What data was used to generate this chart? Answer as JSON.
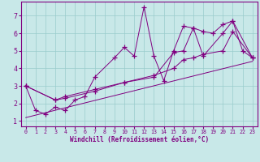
{
  "xlabel": "Windchill (Refroidissement éolien,°C)",
  "background_color": "#c8e8e8",
  "line_color": "#800080",
  "grid_color": "#99cccc",
  "xlim": [
    -0.5,
    23.5
  ],
  "ylim": [
    0.7,
    7.8
  ],
  "xticks": [
    0,
    1,
    2,
    3,
    4,
    5,
    6,
    7,
    8,
    9,
    10,
    11,
    12,
    13,
    14,
    15,
    16,
    17,
    18,
    19,
    20,
    21,
    22,
    23
  ],
  "yticks": [
    1,
    2,
    3,
    4,
    5,
    6,
    7
  ],
  "series": [
    {
      "x": [
        0,
        1,
        2,
        3,
        4,
        5,
        6,
        7,
        9,
        10,
        11,
        12,
        13,
        14,
        15,
        16,
        17,
        18,
        19,
        20,
        21,
        22,
        23
      ],
      "y": [
        3.0,
        1.6,
        1.4,
        1.8,
        1.6,
        2.2,
        2.4,
        3.5,
        4.6,
        5.2,
        4.7,
        7.5,
        4.7,
        3.3,
        5.0,
        6.4,
        6.3,
        6.1,
        6.0,
        6.5,
        6.7,
        5.0,
        4.6
      ],
      "marker": "+"
    },
    {
      "x": [
        0,
        3,
        4,
        7,
        10,
        13,
        15,
        16,
        17,
        18,
        20,
        21,
        23
      ],
      "y": [
        3.0,
        2.2,
        2.3,
        2.7,
        3.2,
        3.5,
        4.9,
        5.0,
        6.3,
        4.7,
        6.0,
        6.7,
        4.6
      ],
      "marker": "+"
    },
    {
      "x": [
        0,
        3,
        4,
        7,
        10,
        13,
        15,
        16,
        17,
        18,
        20,
        21,
        23
      ],
      "y": [
        3.0,
        2.2,
        2.4,
        2.8,
        3.2,
        3.6,
        4.0,
        4.5,
        4.6,
        4.8,
        5.0,
        6.1,
        4.6
      ],
      "marker": "+"
    },
    {
      "x": [
        0,
        23
      ],
      "y": [
        1.2,
        4.4
      ],
      "marker": null
    }
  ]
}
